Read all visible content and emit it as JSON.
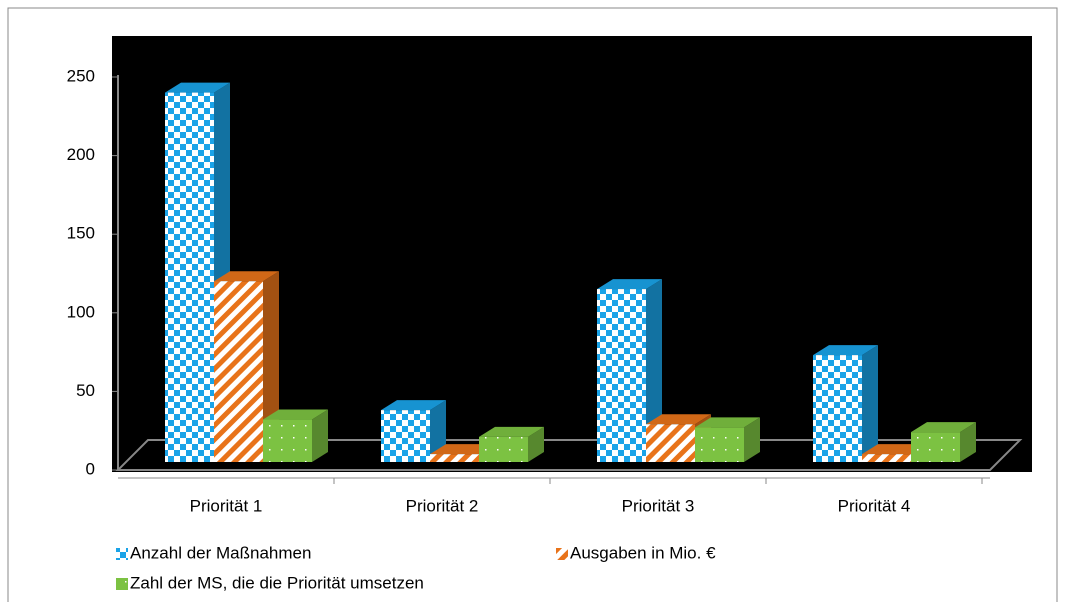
{
  "chart_data": {
    "type": "bar",
    "categories": [
      "Priorität 1",
      "Priorität 2",
      "Priorität 3",
      "Priorität 4"
    ],
    "series": [
      {
        "name": "Anzahl der Maßnahmen",
        "color": "#1aa3e8",
        "values": [
          235,
          33,
          110,
          68
        ]
      },
      {
        "name": "Ausgaben in Mio. €",
        "color": "#e8731a",
        "values": [
          115,
          5,
          24,
          5
        ]
      },
      {
        "name": "Zahl der MS, die die Priorität umsetzen",
        "color": "#7cc242",
        "values": [
          27,
          16,
          22,
          19
        ]
      }
    ],
    "ylim": [
      0,
      250
    ],
    "yticks": [
      0,
      50,
      100,
      150,
      200,
      250
    ]
  }
}
